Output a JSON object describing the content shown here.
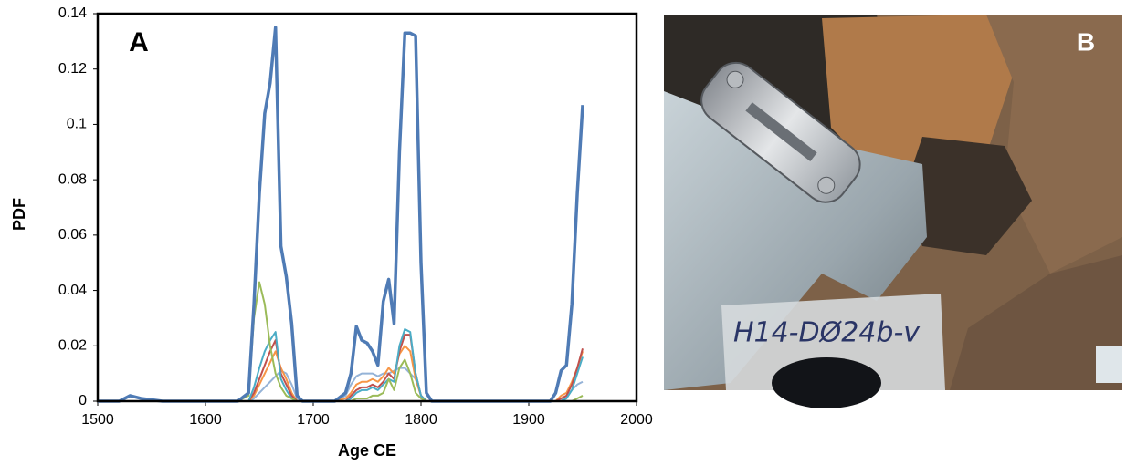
{
  "chart_data": {
    "type": "line",
    "annotation": "A",
    "xlabel": "Age CE",
    "ylabel": "PDF",
    "x": [
      1500,
      1520,
      1530,
      1540,
      1560,
      1630,
      1640,
      1645,
      1650,
      1655,
      1660,
      1665,
      1670,
      1675,
      1680,
      1685,
      1690,
      1720,
      1730,
      1735,
      1740,
      1745,
      1750,
      1755,
      1760,
      1765,
      1770,
      1775,
      1780,
      1785,
      1790,
      1795,
      1800,
      1805,
      1810,
      1900,
      1920,
      1925,
      1930,
      1935,
      1940,
      1945,
      1950
    ],
    "series": [
      {
        "color": "#95b3d7",
        "values": [
          0,
          0,
          0,
          0,
          0,
          0,
          0,
          0.001,
          0.003,
          0.005,
          0.007,
          0.009,
          0.011,
          0.01,
          0.006,
          0.001,
          0,
          0,
          0.002,
          0.006,
          0.009,
          0.01,
          0.01,
          0.01,
          0.009,
          0.01,
          0.01,
          0.011,
          0.012,
          0.012,
          0.01,
          0.008,
          0.002,
          0,
          0,
          0,
          0,
          0,
          0,
          0.002,
          0.004,
          0.006,
          0.007
        ]
      },
      {
        "color": "#f79646",
        "values": [
          0,
          0,
          0,
          0,
          0,
          0,
          0,
          0.002,
          0.006,
          0.01,
          0.014,
          0.018,
          0.012,
          0.008,
          0.003,
          0,
          0,
          0,
          0.001,
          0.003,
          0.006,
          0.007,
          0.007,
          0.008,
          0.007,
          0.009,
          0.012,
          0.01,
          0.017,
          0.02,
          0.018,
          0.008,
          0.002,
          0,
          0,
          0,
          0,
          0,
          0.002,
          0.003,
          0.007,
          0.012,
          0.018
        ]
      },
      {
        "color": "#c0504d",
        "values": [
          0,
          0,
          0,
          0,
          0,
          0,
          0,
          0.003,
          0.008,
          0.013,
          0.018,
          0.022,
          0.01,
          0.006,
          0.002,
          0,
          0,
          0,
          0,
          0.002,
          0.004,
          0.005,
          0.005,
          0.006,
          0.005,
          0.007,
          0.01,
          0.008,
          0.018,
          0.024,
          0.024,
          0.01,
          0.002,
          0,
          0,
          0,
          0,
          0,
          0.001,
          0.002,
          0.006,
          0.012,
          0.019
        ]
      },
      {
        "color": "#4bacc6",
        "values": [
          0,
          0,
          0,
          0,
          0,
          0,
          0,
          0.005,
          0.012,
          0.018,
          0.022,
          0.025,
          0.008,
          0.004,
          0.001,
          0,
          0,
          0,
          0,
          0.001,
          0.003,
          0.004,
          0.004,
          0.005,
          0.004,
          0.006,
          0.008,
          0.007,
          0.02,
          0.026,
          0.025,
          0.01,
          0.002,
          0,
          0,
          0,
          0,
          0,
          0,
          0.001,
          0.004,
          0.01,
          0.016
        ]
      },
      {
        "color": "#9bbb59",
        "values": [
          0,
          0,
          0,
          0,
          0,
          0,
          0.002,
          0.03,
          0.043,
          0.035,
          0.02,
          0.01,
          0.005,
          0.002,
          0.001,
          0,
          0,
          0,
          0,
          0,
          0.001,
          0.001,
          0.001,
          0.002,
          0.002,
          0.003,
          0.008,
          0.004,
          0.012,
          0.015,
          0.01,
          0.003,
          0.001,
          0,
          0,
          0,
          0,
          0,
          0,
          0,
          0,
          0.001,
          0.002
        ]
      },
      {
        "color": "#4f7bb5",
        "values": [
          0,
          0,
          0.002,
          0.001,
          0,
          0,
          0.003,
          0.035,
          0.075,
          0.104,
          0.115,
          0.135,
          0.056,
          0.045,
          0.028,
          0.002,
          0,
          0,
          0.003,
          0.01,
          0.027,
          0.022,
          0.021,
          0.018,
          0.013,
          0.036,
          0.044,
          0.028,
          0.09,
          0.133,
          0.133,
          0.132,
          0.05,
          0.003,
          0,
          0,
          0,
          0.003,
          0.011,
          0.013,
          0.035,
          0.075,
          0.107
        ]
      }
    ],
    "xlim": [
      1500,
      2000
    ],
    "xticks": [
      1500,
      1600,
      1700,
      1800,
      1900,
      2000
    ],
    "ylim": [
      0,
      0.14
    ],
    "yticks": [
      0,
      0.02,
      0.04,
      0.06,
      0.08,
      0.1,
      0.12,
      0.14
    ],
    "grid": false
  },
  "photo": {
    "panel_label": "B",
    "bag_label": "H14-DØ24b-v"
  }
}
